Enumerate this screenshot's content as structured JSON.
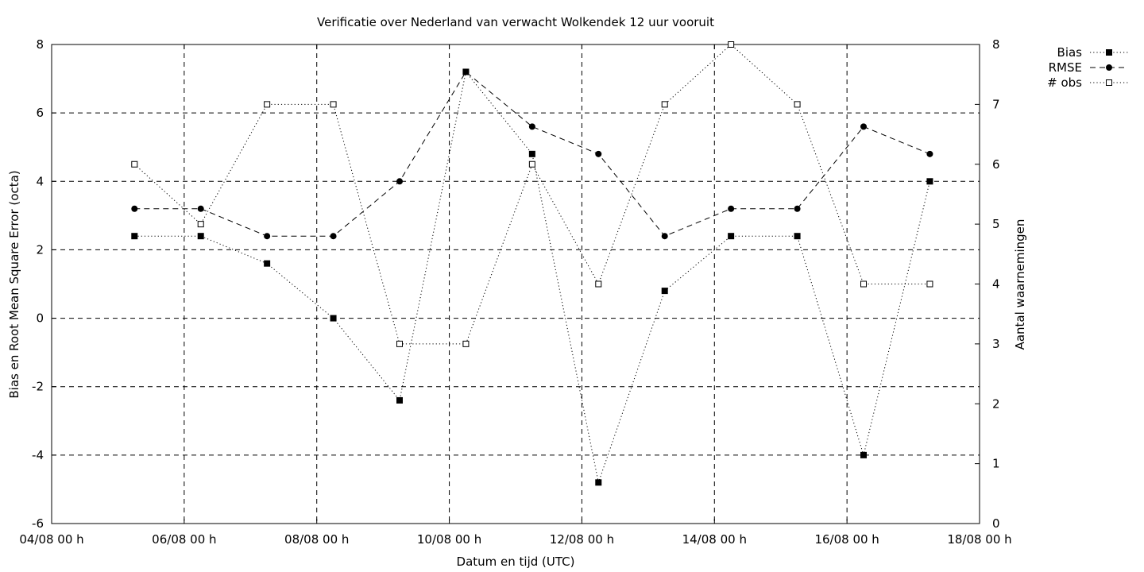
{
  "chart_data": {
    "type": "line",
    "title": "Verificatie over Nederland van verwacht Wolkendek 12 uur vooruit",
    "xlabel": "Datum en tijd (UTC)",
    "ylabel": "Bias en Root Mean Square Error (octa)",
    "y2label": "Aantal waarnemingen",
    "xlim": [
      "04/08 00 h",
      "18/08 00 h"
    ],
    "ylim": [
      -6,
      8
    ],
    "y2lim": [
      0,
      8
    ],
    "grid": true,
    "legend_position": "top-right, outside plot",
    "x_ticks": [
      "04/08 00 h",
      "06/08 00 h",
      "08/08 00 h",
      "10/08 00 h",
      "12/08 00 h",
      "14/08 00 h",
      "16/08 00 h",
      "18/08 00 h"
    ],
    "y_ticks": [
      "8",
      "6",
      "4",
      "2",
      "0",
      "-2",
      "-4",
      "-6"
    ],
    "y2_ticks": [
      "8",
      "7",
      "6",
      "5",
      "4",
      "3",
      "2",
      "1",
      "0"
    ],
    "x": [
      "05/08 06 h",
      "06/08 06 h",
      "07/08 06 h",
      "08/08 06 h",
      "09/08 06 h",
      "10/08 06 h",
      "11/08 06 h",
      "12/08 06 h",
      "13/08 06 h",
      "14/08 06 h",
      "15/08 06 h",
      "16/08 06 h",
      "17/08 06 h"
    ],
    "series": [
      {
        "name": "Bias",
        "axis": "left",
        "line": "dotted",
        "marker": "filled-square",
        "values": [
          2.4,
          2.4,
          1.6,
          0.0,
          -2.4,
          7.2,
          4.8,
          -4.8,
          0.8,
          2.4,
          2.4,
          -4.0,
          4.0
        ]
      },
      {
        "name": "RMSE",
        "axis": "left",
        "line": "dashed",
        "marker": "filled-circle",
        "values": [
          3.2,
          3.2,
          2.4,
          2.4,
          4.0,
          7.2,
          5.6,
          4.8,
          2.4,
          3.2,
          3.2,
          5.6,
          4.8
        ]
      },
      {
        "name": "# obs",
        "axis": "right",
        "line": "dotted",
        "marker": "open-square",
        "values": [
          6,
          5,
          7,
          7,
          3,
          3,
          6,
          4,
          7,
          8,
          7,
          4,
          4
        ]
      }
    ]
  }
}
